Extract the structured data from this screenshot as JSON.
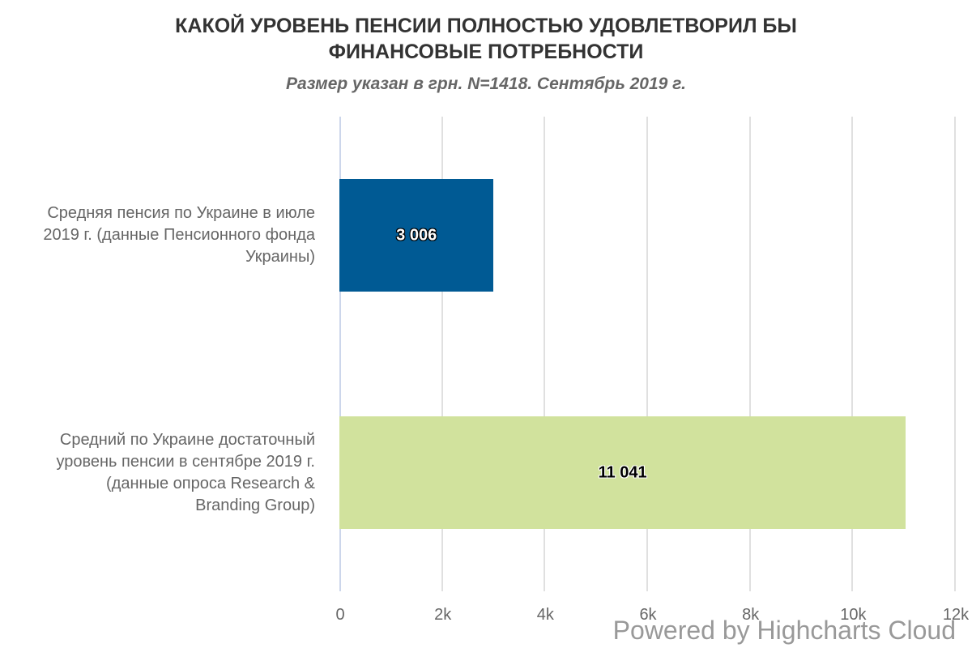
{
  "header": {
    "title_line1": "КАКОЙ УРОВЕНЬ ПЕНСИИ ПОЛНОСТЬЮ УДОВЛЕТВОРИЛ БЫ",
    "title_line2": "ФИНАНСОВЫЕ ПОТРЕБНОСТИ",
    "subtitle": "Размер указан в грн. N=1418. Сентябрь 2019 г."
  },
  "categories": [
    {
      "lines": [
        "Средняя пенсия по Украине в июле",
        "2019 г. (данные Пенсионного фонда",
        "Украины)"
      ],
      "value": 3006,
      "value_label": "3 006",
      "color": "#005a94"
    },
    {
      "lines": [
        "Средний по Украине достаточный",
        "уровень пенсии в сентябре 2019 г.",
        "(данные опроса Research &",
        "Branding Group)"
      ],
      "value": 11041,
      "value_label": "11 041",
      "color": "#d1e29d"
    }
  ],
  "axis": {
    "ticks": [
      "0",
      "2k",
      "4k",
      "6k",
      "8k",
      "10k",
      "12k"
    ]
  },
  "credits": "Powered by Highcharts Cloud",
  "chart_data": {
    "type": "bar",
    "orientation": "horizontal",
    "title": "КАКОЙ УРОВЕНЬ ПЕНСИИ ПОЛНОСТЬЮ УДОВЛЕТВОРИЛ БЫ ФИНАНСОВЫЕ ПОТРЕБНОСТИ",
    "subtitle": "Размер указан в грн. N=1418. Сентябрь 2019 г.",
    "categories": [
      "Средняя пенсия по Украине в июле 2019 г. (данные Пенсионного фонда Украины)",
      "Средний по Украине достаточный уровень пенсии в сентябре 2019 г. (данные опроса Research & Branding Group)"
    ],
    "values": [
      3006,
      11041
    ],
    "colors": [
      "#005a94",
      "#d1e29d"
    ],
    "xlabel": "",
    "ylabel": "",
    "xlim": [
      0,
      12000
    ],
    "tick_labels": [
      "0",
      "2k",
      "4k",
      "6k",
      "8k",
      "10k",
      "12k"
    ],
    "grid": true,
    "legend": "none",
    "data_labels": [
      "3 006",
      "11 041"
    ]
  }
}
